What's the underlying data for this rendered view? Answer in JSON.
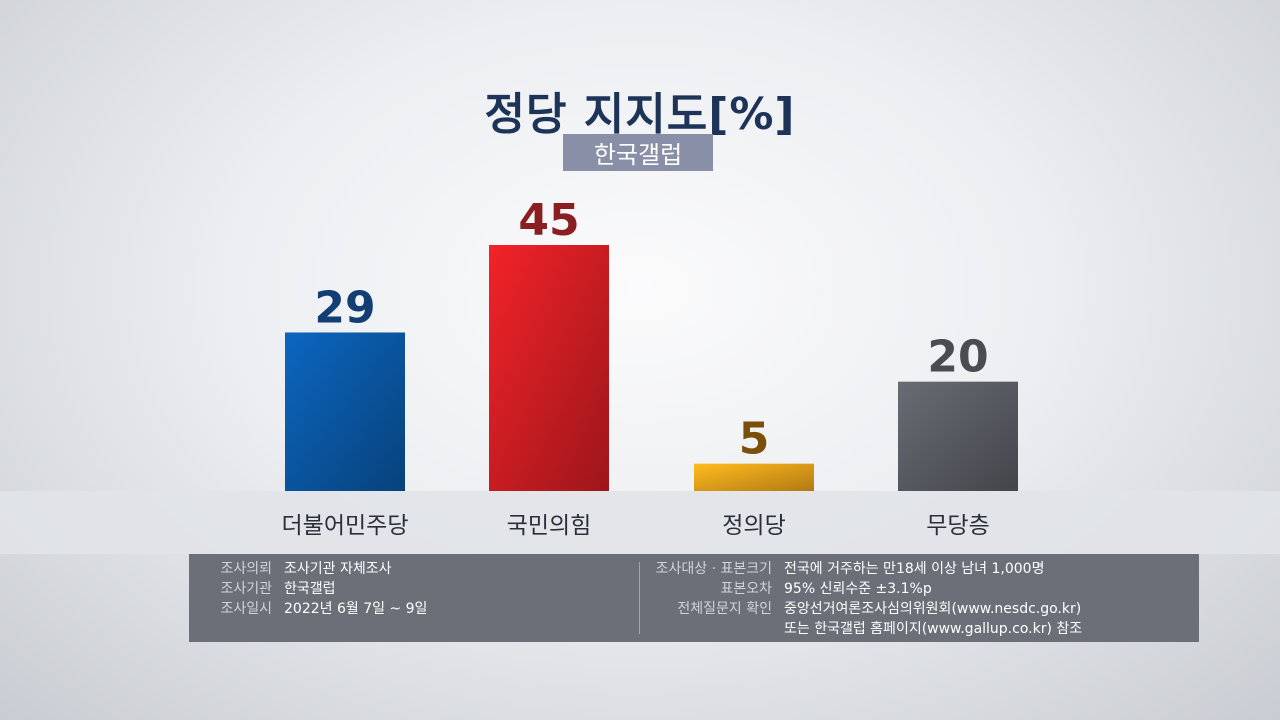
{
  "header": {
    "title": "정당 지지도",
    "unit": "[%]",
    "source_badge": "한국갤럽"
  },
  "chart_data": {
    "type": "bar",
    "title": "정당 지지도",
    "unit": "[%]",
    "categories": [
      "더불어민주당",
      "국민의힘",
      "정의당",
      "무당층"
    ],
    "values": [
      29,
      45,
      5,
      20
    ],
    "colors": [
      "#0b5bab",
      "#d91f25",
      "#f7a81b",
      "#5e6068"
    ],
    "label_colors": [
      "#123e73",
      "#8a1f22",
      "#7a4f0a",
      "#4a4c52"
    ],
    "ylim": [
      0,
      45
    ]
  },
  "info": {
    "left": [
      {
        "key": "조사의뢰",
        "value": "조사기관 자체조사"
      },
      {
        "key": "조사기관",
        "value": "한국갤럽"
      },
      {
        "key": "조사일시",
        "value": "2022년 6월 7일 ~ 9일"
      }
    ],
    "right": [
      {
        "key": "조사대상 · 표본크기",
        "value": "전국에 거주하는 만18세 이상 남녀 1,000명"
      },
      {
        "key": "표본오차",
        "value": "95% 신뢰수준 ±3.1%p"
      },
      {
        "key": "전체질문지 확인",
        "value": "중앙선거여론조사심의위원회(www.nesdc.go.kr)"
      },
      {
        "key": "",
        "value": "또는 한국갤럽 홈페이지(www.gallup.co.kr) 참조"
      }
    ]
  }
}
